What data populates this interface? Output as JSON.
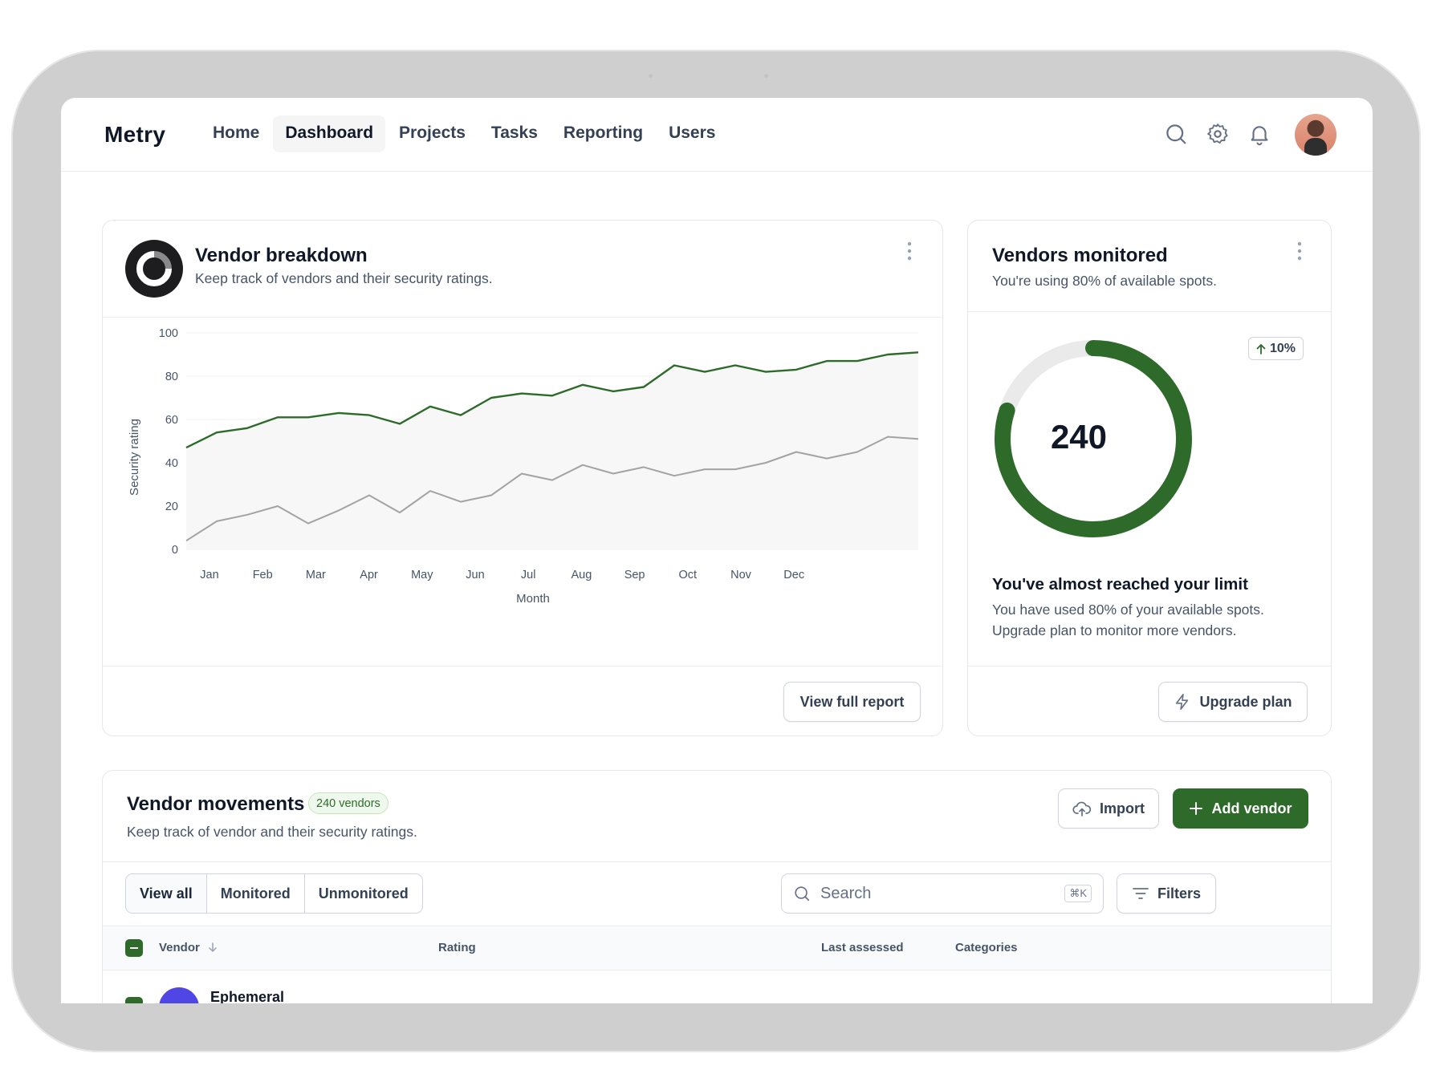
{
  "app": {
    "name": "Metry"
  },
  "nav": {
    "items": [
      {
        "label": "Home",
        "active": false
      },
      {
        "label": "Dashboard",
        "active": true
      },
      {
        "label": "Projects",
        "active": false
      },
      {
        "label": "Tasks",
        "active": false
      },
      {
        "label": "Reporting",
        "active": false
      },
      {
        "label": "Users",
        "active": false
      }
    ],
    "icons": [
      "search-icon",
      "settings-icon",
      "bell-icon"
    ]
  },
  "vendor_breakdown": {
    "title": "Vendor breakdown",
    "subtitle": "Keep track of vendors and their security ratings.",
    "view_button": "View full report"
  },
  "chart_data": {
    "type": "area",
    "xlabel": "Month",
    "ylabel": "Security rating",
    "ylim": [
      0,
      100
    ],
    "yticks": [
      0,
      20,
      40,
      60,
      80,
      100
    ],
    "month_labels": [
      "Jan",
      "Feb",
      "Mar",
      "Apr",
      "May",
      "Jun",
      "Jul",
      "Aug",
      "Sep",
      "Oct",
      "Nov",
      "Dec"
    ],
    "series": [
      {
        "color": "#2e6b2a",
        "values": [
          47,
          54,
          56,
          61,
          61,
          63,
          62,
          58,
          66,
          62,
          70,
          72,
          71,
          76,
          73,
          75,
          85,
          82,
          85,
          82,
          83,
          87,
          87,
          90,
          91
        ]
      },
      {
        "color": "#a3a3a3",
        "values": [
          4,
          13,
          16,
          20,
          12,
          18,
          25,
          17,
          27,
          22,
          25,
          35,
          32,
          39,
          35,
          38,
          34,
          37,
          37,
          40,
          45,
          42,
          45,
          52,
          51
        ]
      }
    ],
    "grid": true
  },
  "vendors_monitored": {
    "title": "Vendors monitored",
    "subtitle": "You're using 80% of available spots.",
    "value": "240",
    "progress": 0.8,
    "trend": "10%",
    "limit_title": "You've almost reached your limit",
    "limit_text_1": "You have used 80% of your available spots.",
    "limit_text_2": "Upgrade plan to monitor more vendors.",
    "upgrade_button": "Upgrade plan"
  },
  "vendor_movements": {
    "title": "Vendor movements",
    "count_badge": "240 vendors",
    "subtitle": "Keep track of vendor and their security ratings.",
    "import_button": "Import",
    "add_button": "Add vendor",
    "tabs": [
      "View all",
      "Monitored",
      "Unmonitored"
    ],
    "search_placeholder": "Search",
    "shortcut": "⌘K",
    "filters_button": "Filters",
    "columns": [
      "Vendor",
      "Rating",
      "Last assessed",
      "Categories"
    ],
    "rows": [
      {
        "vendor": "Ephemeral"
      }
    ]
  },
  "colors": {
    "accent": "#2e6b2a",
    "track": "#eaeaea"
  }
}
